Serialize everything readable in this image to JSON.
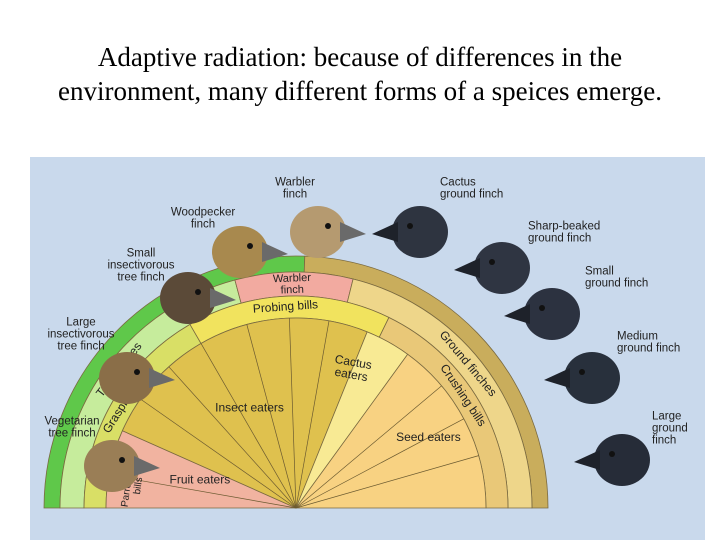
{
  "title": "Adaptive radiation:  because of differences in the environment, many different forms of a speices emerge.",
  "birds": [
    {
      "label": [
        "Warbler",
        "finch"
      ]
    },
    {
      "label": [
        "Woodpecker",
        "finch"
      ]
    },
    {
      "label": [
        "Small",
        "insectivorous",
        "tree finch"
      ]
    },
    {
      "label": [
        "Large",
        "insectivorous",
        "tree finch"
      ]
    },
    {
      "label": [
        "Vegetarian",
        "tree finch"
      ]
    },
    {
      "label": [
        "Cactus",
        "ground finch"
      ]
    },
    {
      "label": [
        "Sharp-beaked",
        "ground finch"
      ]
    },
    {
      "label": [
        "Small",
        "ground finch"
      ]
    },
    {
      "label": [
        "Medium",
        "ground finch"
      ]
    },
    {
      "label": [
        "Large",
        "ground",
        "finch"
      ]
    }
  ],
  "diagram": {
    "tree_finches": "Tree finches",
    "ground_finches": "Ground finches",
    "warbler": [
      "Warbler",
      "finch"
    ],
    "grasping": "Grasping bills",
    "probing": "Probing bills",
    "crushing": "Crushing bills",
    "parrot": [
      "Parrot-like",
      "bills"
    ],
    "fruit": "Fruit eaters",
    "insect": "Insect eaters",
    "cactus": [
      "Cactus",
      "eaters"
    ],
    "seed": "Seed eaters"
  }
}
